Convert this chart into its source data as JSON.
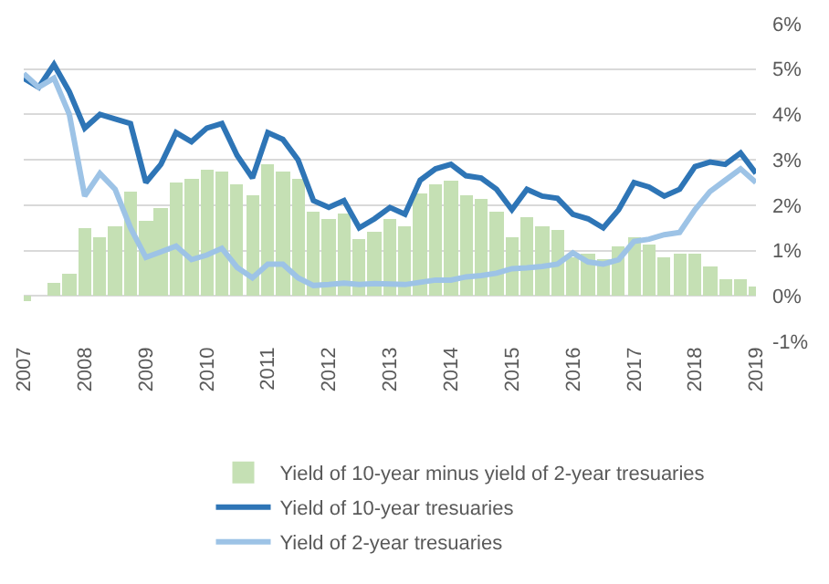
{
  "chart_data": {
    "type": "line",
    "x": [
      "2007-01",
      "2007-04",
      "2007-07",
      "2007-10",
      "2008-01",
      "2008-04",
      "2008-07",
      "2008-10",
      "2009-01",
      "2009-04",
      "2009-07",
      "2009-10",
      "2010-01",
      "2010-04",
      "2010-07",
      "2010-10",
      "2011-01",
      "2011-04",
      "2011-07",
      "2011-10",
      "2012-01",
      "2012-04",
      "2012-07",
      "2012-10",
      "2013-01",
      "2013-04",
      "2013-07",
      "2013-10",
      "2014-01",
      "2014-04",
      "2014-07",
      "2014-10",
      "2015-01",
      "2015-04",
      "2015-07",
      "2015-10",
      "2016-01",
      "2016-04",
      "2016-07",
      "2016-10",
      "2017-01",
      "2017-04",
      "2017-07",
      "2017-10",
      "2018-01",
      "2018-04",
      "2018-07",
      "2018-10",
      "2019-01"
    ],
    "series": [
      {
        "name": "Yield of 10-year minus yield of 2-year tresuaries",
        "type": "bar",
        "color": "#c5e0b4",
        "values": [
          -0.1,
          0,
          0.3,
          0.5,
          1.5,
          1.3,
          1.55,
          2.3,
          1.65,
          1.93,
          2.5,
          2.6,
          2.8,
          2.75,
          2.47,
          2.2,
          2.9,
          2.75,
          2.6,
          1.87,
          1.7,
          1.82,
          1.25,
          1.43,
          1.69,
          1.55,
          2.25,
          2.45,
          2.55,
          2.23,
          2.15,
          1.85,
          1.3,
          1.73,
          1.55,
          1.45,
          0.85,
          0.95,
          0.8,
          1.1,
          1.3,
          1.15,
          0.85,
          0.95,
          0.95,
          0.65,
          0.35,
          0.35,
          0.2
        ]
      },
      {
        "name": "Yield of 10-year tresuaries",
        "color": "#2e75b6",
        "values": [
          4.8,
          4.6,
          5.1,
          4.5,
          3.7,
          4.0,
          3.9,
          3.8,
          2.5,
          2.9,
          3.6,
          3.4,
          3.7,
          3.8,
          3.1,
          2.6,
          3.6,
          3.45,
          3.0,
          2.1,
          1.95,
          2.1,
          1.5,
          1.7,
          1.95,
          1.8,
          2.55,
          2.8,
          2.9,
          2.65,
          2.6,
          2.35,
          1.9,
          2.35,
          2.2,
          2.15,
          1.8,
          1.7,
          1.5,
          1.9,
          2.5,
          2.4,
          2.2,
          2.35,
          2.85,
          2.95,
          2.9,
          3.15,
          2.7
        ]
      },
      {
        "name": "Yield of 2-year tresuaries",
        "color": "#9dc3e6",
        "values": [
          4.9,
          4.6,
          4.8,
          4.0,
          2.2,
          2.7,
          2.35,
          1.5,
          0.85,
          0.97,
          1.1,
          0.8,
          0.9,
          1.05,
          0.63,
          0.4,
          0.7,
          0.7,
          0.4,
          0.23,
          0.25,
          0.28,
          0.25,
          0.27,
          0.26,
          0.25,
          0.3,
          0.35,
          0.35,
          0.42,
          0.45,
          0.5,
          0.6,
          0.62,
          0.65,
          0.7,
          0.95,
          0.75,
          0.7,
          0.8,
          1.2,
          1.25,
          1.35,
          1.4,
          1.9,
          2.3,
          2.55,
          2.8,
          2.5
        ]
      }
    ],
    "xlim": [
      "2007-01-01",
      "2019-01-01"
    ],
    "xticks": [
      "2007",
      "2008",
      "2009",
      "2010",
      "2011",
      "2012",
      "2013",
      "2014",
      "2015",
      "2016",
      "2017",
      "2018",
      "2019"
    ],
    "ylim": [
      -1,
      6
    ],
    "yticks": [
      {
        "value": -1,
        "label": "-1%"
      },
      {
        "value": 0,
        "label": "0%"
      },
      {
        "value": 1,
        "label": "1%"
      },
      {
        "value": 2,
        "label": "2%"
      },
      {
        "value": 3,
        "label": "3%"
      },
      {
        "value": 4,
        "label": "4%"
      },
      {
        "value": 5,
        "label": "5%"
      },
      {
        "value": 6,
        "label": "6%"
      }
    ],
    "grid": "y",
    "legend": "bottom"
  }
}
